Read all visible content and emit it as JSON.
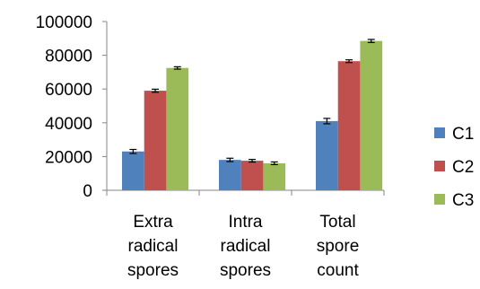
{
  "chart_data": {
    "type": "bar",
    "categories": [
      [
        "Extra",
        "radical",
        "spores"
      ],
      [
        "Intra",
        "radical",
        "spores"
      ],
      [
        "Total",
        "spore",
        "count"
      ]
    ],
    "series": [
      {
        "name": "C1",
        "color": "#4F81BD",
        "values": [
          23000,
          18000,
          41000
        ],
        "errors": [
          1200,
          1000,
          1600
        ]
      },
      {
        "name": "C2",
        "color": "#C0504D",
        "values": [
          59000,
          17500,
          76500
        ],
        "errors": [
          900,
          800,
          800
        ]
      },
      {
        "name": "C3",
        "color": "#9BBB59",
        "values": [
          72500,
          16000,
          88500
        ],
        "errors": [
          700,
          800,
          900
        ]
      }
    ],
    "ylim": [
      0,
      100000
    ],
    "yticks": [
      0,
      20000,
      40000,
      60000,
      80000,
      100000
    ],
    "ytick_labels": [
      "0",
      "20000",
      "40000",
      "60000",
      "80000",
      "100000"
    ],
    "grid": false,
    "legend_position": "right",
    "title": "",
    "xlabel": "",
    "ylabel": ""
  }
}
